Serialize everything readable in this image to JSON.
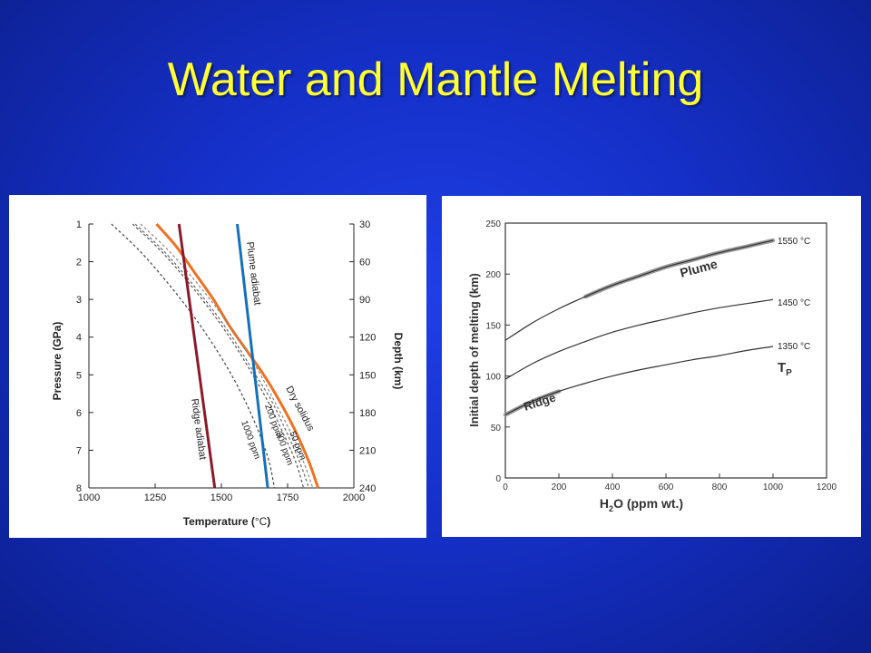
{
  "slide": {
    "title": "Water and Mantle Melting"
  },
  "colors": {
    "background": "#1530c8",
    "title": "#ffff33",
    "dry_solidus": "#f07020",
    "plume_adiabat": "#1570b8",
    "ridge_adiabat": "#8b1a2a",
    "wet_solidus": "#555555",
    "right_curves": "#333333",
    "right_highlight": "#999999"
  },
  "chart_data": [
    {
      "type": "line",
      "xlabel": "Temperature (°C)",
      "ylabel": "Pressure (GPa)",
      "y2label": "Depth (km)",
      "xlim": [
        1000,
        2000
      ],
      "ylim": [
        1,
        8
      ],
      "y_inverted": true,
      "x_ticks": [
        1000,
        1250,
        1500,
        1750,
        2000
      ],
      "y_ticks": [
        1,
        2,
        3,
        4,
        5,
        6,
        7,
        8
      ],
      "y2_ticks": [
        30,
        60,
        90,
        120,
        150,
        180,
        210,
        240
      ],
      "grid": false,
      "series": [
        {
          "name": "Dry solidus",
          "style": "solid",
          "color": "#f07020",
          "x": [
            1255,
            1330,
            1400,
            1470,
            1530,
            1600,
            1660,
            1720,
            1780,
            1830,
            1865
          ],
          "y": [
            1,
            1.6,
            2.3,
            3.0,
            3.7,
            4.4,
            5.0,
            5.7,
            6.5,
            7.3,
            8
          ]
        },
        {
          "name": "50 ppm",
          "style": "dashed",
          "color": "#888888",
          "x": [
            1195,
            1300,
            1400,
            1490,
            1570,
            1640,
            1700,
            1760,
            1810,
            1845
          ],
          "y": [
            1,
            1.7,
            2.5,
            3.3,
            4.1,
            4.9,
            5.7,
            6.5,
            7.3,
            8
          ]
        },
        {
          "name": "300 ppm",
          "style": "dashed",
          "color": "#666666",
          "x": [
            1175,
            1280,
            1380,
            1470,
            1550,
            1620,
            1690,
            1745,
            1795,
            1830
          ],
          "y": [
            1,
            1.7,
            2.5,
            3.3,
            4.1,
            4.9,
            5.7,
            6.5,
            7.3,
            8
          ]
        },
        {
          "name": "200 ppm",
          "style": "dashed",
          "color": "#555555",
          "x": [
            1165,
            1270,
            1370,
            1460,
            1540,
            1610,
            1675,
            1730,
            1780,
            1810
          ],
          "y": [
            1,
            1.7,
            2.5,
            3.3,
            4.1,
            4.9,
            5.7,
            6.5,
            7.3,
            8
          ]
        },
        {
          "name": "1000 ppm",
          "style": "dashed",
          "color": "#444444",
          "x": [
            1085,
            1190,
            1290,
            1380,
            1460,
            1530,
            1590,
            1640,
            1680,
            1700
          ],
          "y": [
            1,
            1.7,
            2.5,
            3.3,
            4.1,
            4.9,
            5.7,
            6.5,
            7.3,
            8
          ]
        },
        {
          "name": "Plume adiabat",
          "style": "solid",
          "color": "#1570b8",
          "x": [
            1560,
            1675
          ],
          "y": [
            1,
            8
          ]
        },
        {
          "name": "Ridge adiabat",
          "style": "solid",
          "color": "#8b1a2a",
          "x": [
            1340,
            1475
          ],
          "y": [
            1,
            8
          ]
        }
      ]
    },
    {
      "type": "line",
      "xlabel": "H2O (ppm wt.)",
      "ylabel": "Initial depth of melting (km)",
      "xlim": [
        0,
        1200
      ],
      "ylim": [
        0,
        250
      ],
      "x_ticks": [
        0,
        200,
        400,
        600,
        800,
        1000,
        1200
      ],
      "y_ticks": [
        0,
        50,
        100,
        150,
        200,
        250
      ],
      "grid": false,
      "annotations": [
        "Plume",
        "Ridge",
        "TP"
      ],
      "series": [
        {
          "name": "1550 °C",
          "x": [
            0,
            100,
            200,
            300,
            400,
            500,
            600,
            700,
            800,
            900,
            1000
          ],
          "y": [
            135,
            152,
            166,
            178,
            189,
            198,
            207,
            214,
            221,
            227,
            233
          ]
        },
        {
          "name": "1450 °C",
          "x": [
            0,
            100,
            200,
            300,
            400,
            500,
            600,
            700,
            800,
            900,
            1000
          ],
          "y": [
            97,
            112,
            124,
            134,
            143,
            150,
            156,
            162,
            167,
            171,
            175
          ]
        },
        {
          "name": "1350 °C",
          "x": [
            0,
            100,
            200,
            300,
            400,
            500,
            600,
            700,
            800,
            900,
            1000
          ],
          "y": [
            62,
            75,
            85,
            93,
            100,
            106,
            111,
            116,
            120,
            125,
            129
          ]
        }
      ]
    }
  ],
  "left_chart": {
    "xlabel_base": "Temperature (",
    "xlabel_unit": "°C",
    "xlabel_end": ")",
    "labels": {
      "plume_adiabat": "Plume adiabat",
      "ridge_adiabat": "Ridge adiabat",
      "dry_solidus": "Dry solidus",
      "ppm50": "50 ppm",
      "ppm300": "300 ppm",
      "ppm200": "200 ppm",
      "ppm1000": "1000 ppm"
    }
  },
  "right_chart": {
    "xlabel_h": "H",
    "xlabel_sub": "2",
    "xlabel_rest": "O (ppm wt.)",
    "labels": {
      "plume": "Plume",
      "ridge": "Ridge",
      "tp_main": "T",
      "tp_sub": "P",
      "t1550": "1550 °C",
      "t1450": "1450 °C",
      "t1350": "1350 °C"
    }
  }
}
